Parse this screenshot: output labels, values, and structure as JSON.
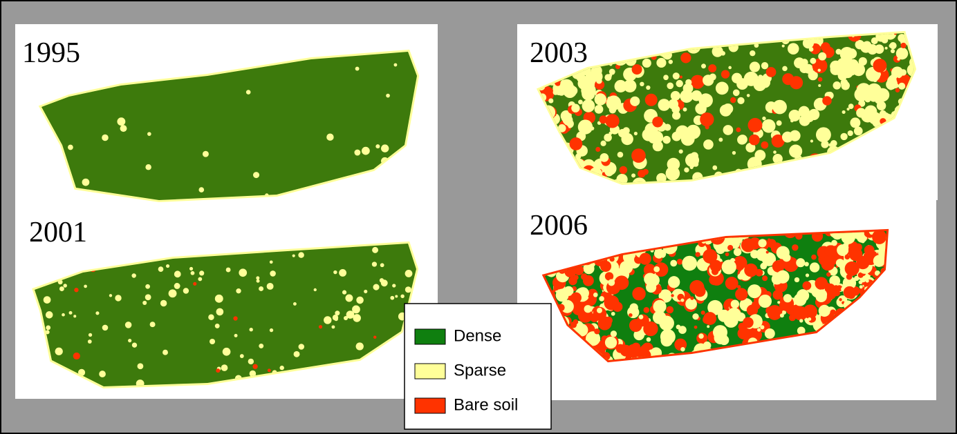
{
  "panels": [
    {
      "year": "1995"
    },
    {
      "year": "2001"
    },
    {
      "year": "2003"
    },
    {
      "year": "2006"
    }
  ],
  "legend": {
    "items": [
      {
        "label": "Dense",
        "color": "#0f7f0f"
      },
      {
        "label": "Sparse",
        "color": "#ffff99"
      },
      {
        "label": "Bare soil",
        "color": "#ff3300"
      }
    ]
  }
}
